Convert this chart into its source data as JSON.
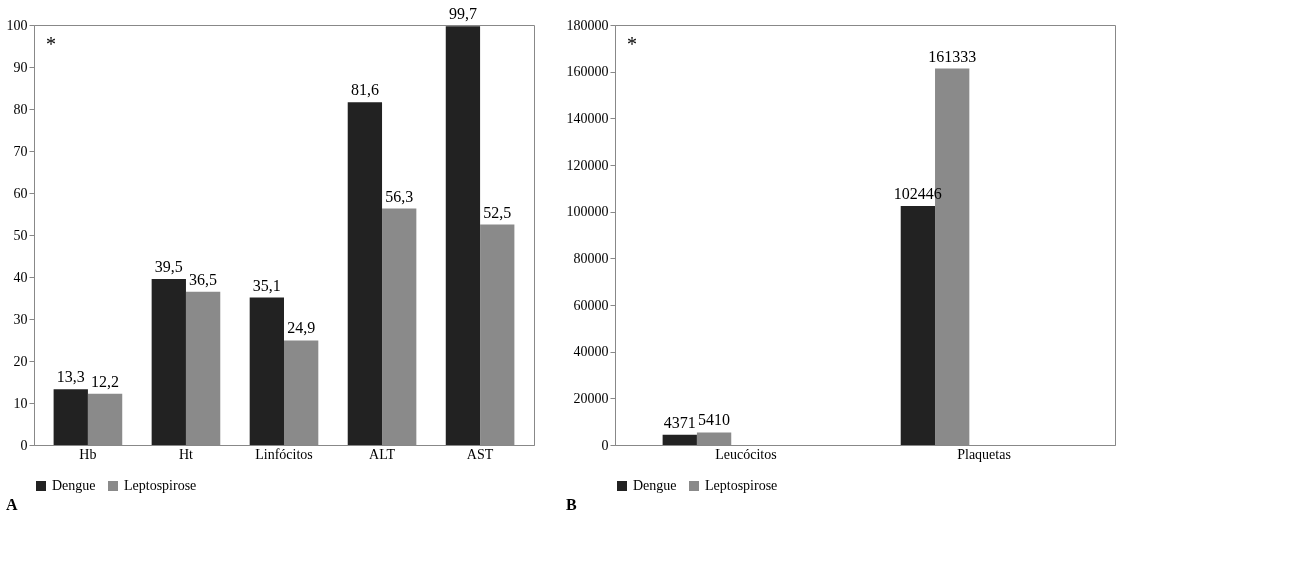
{
  "chart_data": [
    {
      "type": "bar",
      "categories": [
        "Hb",
        "Ht",
        "Linfócitos",
        "ALT",
        "AST"
      ],
      "ylim": [
        0,
        100
      ],
      "yticks": [
        0,
        10,
        20,
        30,
        40,
        50,
        60,
        70,
        80,
        90,
        100
      ],
      "legend": "bottom",
      "series": [
        {
          "name": "Dengue",
          "color": "#222222",
          "values": [
            13.3,
            39.5,
            35.1,
            81.6,
            99.7
          ],
          "value_labels": [
            "13,3",
            "39,5",
            "35,1",
            "81,6",
            "99,7"
          ]
        },
        {
          "name": "Leptospirose",
          "color": "#8a8a8a",
          "values": [
            12.2,
            36.5,
            24.9,
            56.3,
            52.5
          ],
          "value_labels": [
            "12,2",
            "36,5",
            "24,9",
            "56,3",
            "52,5"
          ]
        }
      ],
      "annotations": [
        "*",
        "A"
      ]
    },
    {
      "type": "bar",
      "categories": [
        "Leucócitos",
        "Plaquetas"
      ],
      "ylim": [
        0,
        180000
      ],
      "yticks": [
        0,
        20000,
        40000,
        60000,
        80000,
        100000,
        120000,
        140000,
        160000,
        180000
      ],
      "legend": "bottom",
      "data_labels": true,
      "series": [
        {
          "name": "Dengue",
          "color": "#222222",
          "values": [
            4371,
            102446
          ]
        },
        {
          "name": "Leptospirose",
          "color": "#8a8a8a",
          "values": [
            5410,
            161333
          ]
        }
      ],
      "annotations": [
        "*",
        "B"
      ]
    }
  ]
}
